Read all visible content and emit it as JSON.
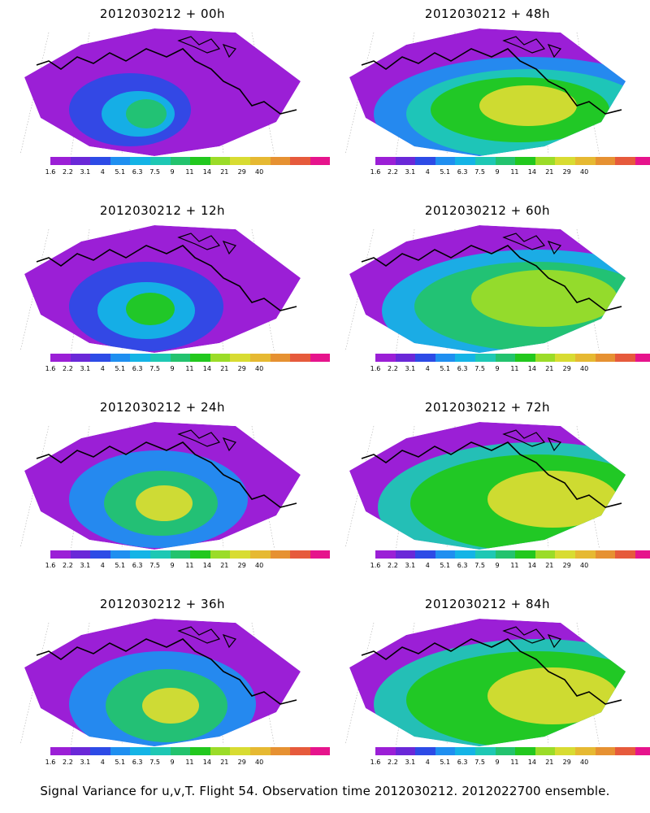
{
  "panels": [
    {
      "title": "2012030212 + 00h"
    },
    {
      "title": "2012030212 + 48h"
    },
    {
      "title": "2012030212 + 12h"
    },
    {
      "title": "2012030212 + 60h"
    },
    {
      "title": "2012030212 + 24h"
    },
    {
      "title": "2012030212 + 72h"
    },
    {
      "title": "2012030212 + 36h"
    },
    {
      "title": "2012030212 + 84h"
    }
  ],
  "colorbar": {
    "labels": [
      "1.6",
      "2.2",
      "3.1",
      "4",
      "5.1",
      "6.3",
      "7.5",
      "9",
      "11",
      "14",
      "21",
      "29",
      "40"
    ],
    "colors": [
      "#9b1fd6",
      "#6a28d8",
      "#2d4be6",
      "#1f8ff0",
      "#14b4e6",
      "#1ec8b4",
      "#23c36e",
      "#22c81e",
      "#9bdc28",
      "#d8dc32",
      "#e6b932",
      "#e69132",
      "#e65a3c",
      "#e6148c"
    ]
  },
  "caption": "Signal Variance for u,v,T. Flight 54. Observation time 2012030212. 2012022700 ensemble."
}
